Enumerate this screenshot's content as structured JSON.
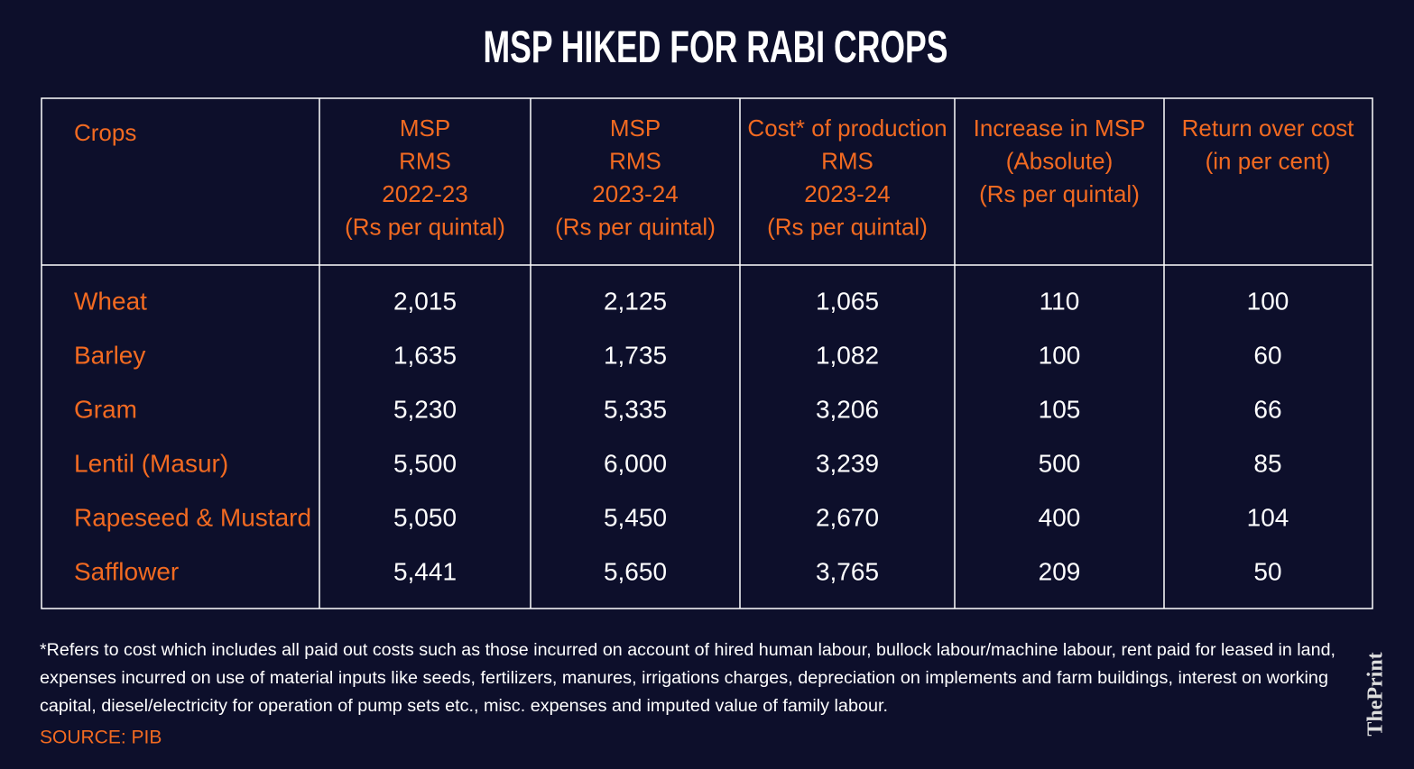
{
  "header": {
    "title": "MSP HIKED FOR RABI CROPS"
  },
  "table": {
    "columns": [
      [
        "Crops"
      ],
      [
        "MSP",
        "RMS",
        "2022-23",
        "(Rs per quintal)"
      ],
      [
        "MSP",
        "RMS",
        "2023-24",
        "(Rs per quintal)"
      ],
      [
        "Cost* of production",
        "RMS",
        "2023-24",
        "(Rs per quintal)"
      ],
      [
        "Increase in MSP",
        "(Absolute)",
        "(Rs per quintal)"
      ],
      [
        "Return over cost",
        "(in per cent)"
      ]
    ],
    "rows": [
      [
        "Wheat",
        "2,015",
        "2,125",
        "1,065",
        "110",
        "100"
      ],
      [
        "Barley",
        "1,635",
        "1,735",
        "1,082",
        "100",
        "60"
      ],
      [
        "Gram",
        "5,230",
        "5,335",
        "3,206",
        "105",
        "66"
      ],
      [
        "Lentil (Masur)",
        "5,500",
        "6,000",
        "3,239",
        "500",
        "85"
      ],
      [
        "Rapeseed & Mustard",
        "5,050",
        "5,450",
        "2,670",
        "400",
        "104"
      ],
      [
        "Safflower",
        "5,441",
        "5,650",
        "3,765",
        "209",
        "50"
      ]
    ]
  },
  "footnote": [
    "*Refers to cost which includes all paid out costs such as those incurred on account of hired human labour, bullock labour/machine labour, rent paid for leased in land,",
    "expenses incurred on use of material inputs like seeds, fertilizers, manures, irrigations charges, depreciation on implements and farm buildings, interest on working",
    "capital, diesel/electricity for operation of pump sets etc., misc. expenses and imputed value of family labour."
  ],
  "source": "SOURCE: PIB",
  "logo": "ThePrint"
}
